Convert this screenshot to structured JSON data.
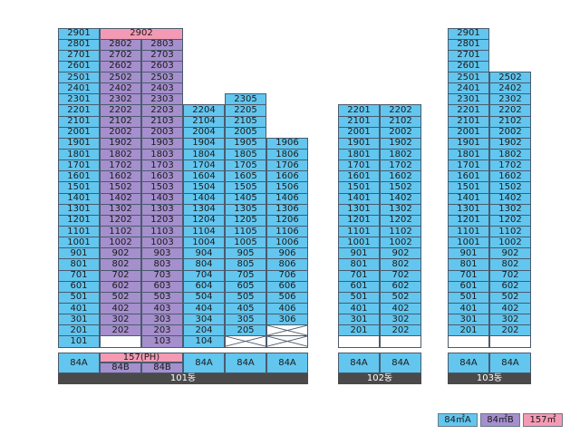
{
  "colors": {
    "type_84A": "#62c6ef",
    "type_84B": "#a58fcd",
    "type_157": "#f59ab4",
    "building_bar": "#4a4a4a"
  },
  "floors": [
    29,
    28,
    27,
    26,
    25,
    24,
    23,
    22,
    21,
    20,
    19,
    18,
    17,
    16,
    15,
    14,
    13,
    12,
    11,
    10,
    9,
    8,
    7,
    6,
    5,
    4,
    3,
    2,
    1
  ],
  "buildings": [
    {
      "label": "101동",
      "columns": [
        {
          "top": 29,
          "bottom": 1,
          "type": "84A",
          "type_label": "84A",
          "line": "01",
          "overrides": {
            "29": "2901",
            "28": "2801",
            "27": "2701",
            "26": "2601",
            "25": "2501",
            "24": "2401",
            "23": "2301"
          }
        },
        {
          "top": 28,
          "bottom": 2,
          "type": "84B",
          "type_label": "84B",
          "line": "02",
          "empty_floors": [
            1
          ]
        },
        {
          "top": 28,
          "bottom": 1,
          "type": "84B",
          "type_label": "84B",
          "line": "03"
        },
        {
          "top": 22,
          "bottom": 1,
          "type": "84A",
          "type_label": "84A",
          "line": "04"
        },
        {
          "top": 23,
          "bottom": 2,
          "type": "84A",
          "type_label": "84A",
          "line": "05",
          "cross_floors": [
            1
          ]
        },
        {
          "top": 19,
          "bottom": 3,
          "type": "84A",
          "type_label": "84A",
          "line": "06",
          "cross_floors": [
            2,
            1
          ]
        }
      ],
      "specials": [
        {
          "label": "2902",
          "floor": 29,
          "from_col": 1,
          "to_col": 2,
          "type": "157"
        },
        {
          "label": "157(PH)",
          "row": "type",
          "from_col": 1,
          "to_col": 2,
          "type": "157"
        }
      ]
    },
    {
      "label": "102동",
      "columns": [
        {
          "top": 22,
          "bottom": 2,
          "type": "84A",
          "type_label": "84A",
          "line": "01",
          "empty_floors": [
            1
          ]
        },
        {
          "top": 22,
          "bottom": 2,
          "type": "84A",
          "type_label": "84A",
          "line": "02",
          "empty_floors": [
            1
          ]
        }
      ],
      "specials": []
    },
    {
      "label": "103동",
      "columns": [
        {
          "top": 29,
          "bottom": 2,
          "type": "84A",
          "type_label": "84A",
          "line": "01",
          "empty_floors": [
            1
          ]
        },
        {
          "top": 25,
          "bottom": 2,
          "type": "84A",
          "type_label": "84A",
          "line": "02",
          "empty_floors": [
            1
          ]
        }
      ],
      "specials": []
    }
  ],
  "legend": [
    {
      "label": "84㎡A",
      "type": "84A"
    },
    {
      "label": "84㎡B",
      "type": "84B"
    },
    {
      "label": "157㎡",
      "type": "157"
    }
  ]
}
